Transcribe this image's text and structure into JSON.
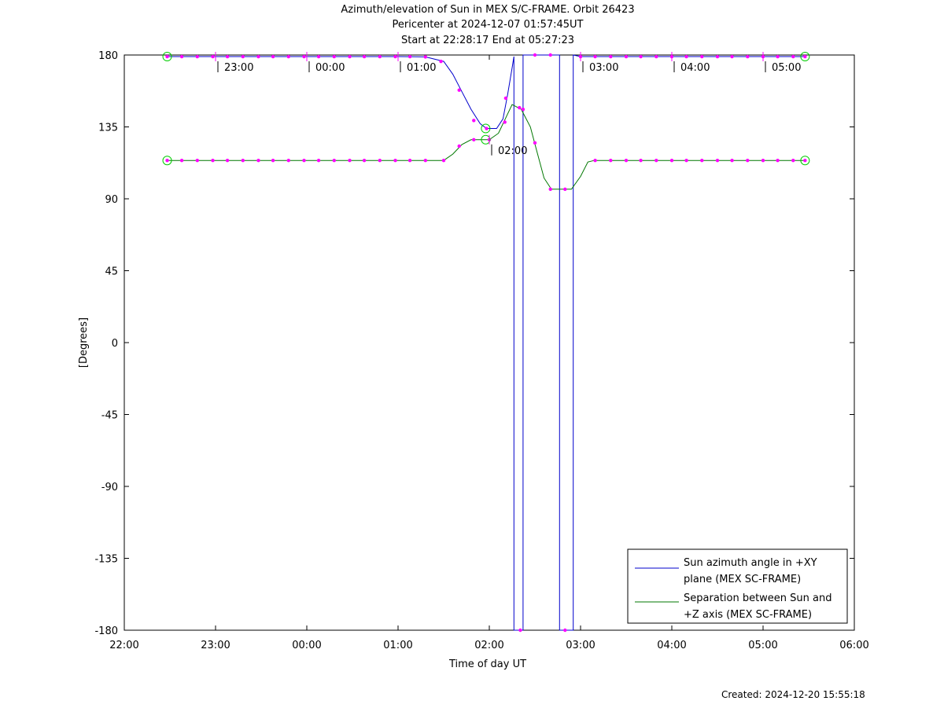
{
  "title_lines": [
    "Azimuth/elevation of Sun in MEX S/C-FRAME.  Orbit 26423",
    "Pericenter at 2024-12-07 01:57:45UT",
    "Start at 22:28:17 End at 05:27:23"
  ],
  "created": "Created: 2024-12-20 15:55:18",
  "chart_data": {
    "type": "line",
    "xlabel": "Time of day UT",
    "ylabel": "[Degrees]",
    "xlim_hours": [
      22,
      30
    ],
    "ylim": [
      -180,
      180
    ],
    "x_ticks": [
      {
        "h": 22,
        "label": "22:00"
      },
      {
        "h": 23,
        "label": "23:00"
      },
      {
        "h": 24,
        "label": "00:00"
      },
      {
        "h": 25,
        "label": "01:00"
      },
      {
        "h": 26,
        "label": "02:00"
      },
      {
        "h": 27,
        "label": "03:00"
      },
      {
        "h": 28,
        "label": "04:00"
      },
      {
        "h": 29,
        "label": "05:00"
      },
      {
        "h": 30,
        "label": "06:00"
      }
    ],
    "y_ticks": [
      {
        "v": 180,
        "label": "180"
      },
      {
        "v": 135,
        "label": "135"
      },
      {
        "v": 90,
        "label": "90"
      },
      {
        "v": 45,
        "label": "45"
      },
      {
        "v": 0,
        "label": "0"
      },
      {
        "v": -45,
        "label": "-45"
      },
      {
        "v": -90,
        "label": "-90"
      },
      {
        "v": -135,
        "label": "-135"
      },
      {
        "v": -180,
        "label": "-180"
      }
    ],
    "grid": false,
    "legend_position": "bottom-right",
    "series": [
      {
        "name": "Sun azimuth angle in +XY plane (MEX SC-FRAME)",
        "legend_lines": [
          "Sun azimuth angle in +XY",
          "plane (MEX SC-FRAME)"
        ],
        "color": "#0000cc",
        "points": [
          [
            22.47,
            179
          ],
          [
            23.0,
            179
          ],
          [
            24.0,
            179
          ],
          [
            25.0,
            179
          ],
          [
            25.3,
            178.8
          ],
          [
            25.5,
            176
          ],
          [
            25.6,
            168
          ],
          [
            25.7,
            157
          ],
          [
            25.8,
            146
          ],
          [
            25.9,
            137
          ],
          [
            25.97,
            134
          ],
          [
            26.08,
            134
          ],
          [
            26.15,
            140
          ],
          [
            26.2,
            155
          ],
          [
            26.25,
            172
          ],
          [
            26.27,
            179
          ],
          [
            26.27,
            90
          ],
          [
            26.27,
            -90
          ],
          [
            26.27,
            -180
          ],
          [
            26.37,
            -180
          ],
          [
            26.37,
            -90
          ],
          [
            26.37,
            90
          ],
          [
            26.37,
            180
          ],
          [
            26.77,
            180
          ],
          [
            26.77,
            90
          ],
          [
            26.77,
            -90
          ],
          [
            26.77,
            -180
          ],
          [
            26.92,
            -180
          ],
          [
            26.92,
            -90
          ],
          [
            26.92,
            90
          ],
          [
            26.92,
            180
          ],
          [
            27.0,
            179
          ],
          [
            28.0,
            179
          ],
          [
            29.0,
            179
          ],
          [
            29.46,
            179
          ]
        ]
      },
      {
        "name": "Separation between Sun and +Z axis (MEX SC-FRAME)",
        "legend_lines": [
          "Separation between Sun and",
          "+Z axis (MEX SC-FRAME)"
        ],
        "color": "#007700",
        "points": [
          [
            22.47,
            114
          ],
          [
            23.0,
            114
          ],
          [
            24.0,
            114
          ],
          [
            25.0,
            114
          ],
          [
            25.5,
            114
          ],
          [
            25.6,
            118
          ],
          [
            25.7,
            124
          ],
          [
            25.8,
            127
          ],
          [
            26.0,
            127
          ],
          [
            26.1,
            131
          ],
          [
            26.2,
            143
          ],
          [
            26.25,
            149
          ],
          [
            26.35,
            146
          ],
          [
            26.45,
            135
          ],
          [
            26.52,
            120
          ],
          [
            26.6,
            103
          ],
          [
            26.68,
            96
          ],
          [
            26.9,
            96
          ],
          [
            27.0,
            104
          ],
          [
            27.08,
            113
          ],
          [
            27.15,
            114
          ],
          [
            28.0,
            114
          ],
          [
            29.0,
            114
          ],
          [
            29.46,
            114
          ]
        ]
      }
    ],
    "markers_magenta": [
      {
        "x": 22.47,
        "y": 179
      },
      {
        "x": 22.63,
        "y": 179
      },
      {
        "x": 22.8,
        "y": 179
      },
      {
        "x": 22.97,
        "y": 179
      },
      {
        "x": 23.13,
        "y": 179
      },
      {
        "x": 23.3,
        "y": 179
      },
      {
        "x": 23.47,
        "y": 179
      },
      {
        "x": 23.63,
        "y": 179
      },
      {
        "x": 23.8,
        "y": 179
      },
      {
        "x": 23.97,
        "y": 179
      },
      {
        "x": 24.13,
        "y": 179
      },
      {
        "x": 24.3,
        "y": 179
      },
      {
        "x": 24.47,
        "y": 179
      },
      {
        "x": 24.63,
        "y": 179
      },
      {
        "x": 24.8,
        "y": 179
      },
      {
        "x": 24.97,
        "y": 179
      },
      {
        "x": 25.13,
        "y": 179
      },
      {
        "x": 25.3,
        "y": 178.8
      },
      {
        "x": 25.47,
        "y": 176
      },
      {
        "x": 25.67,
        "y": 158
      },
      {
        "x": 25.83,
        "y": 139
      },
      {
        "x": 25.97,
        "y": 134
      },
      {
        "x": 26.18,
        "y": 153
      },
      {
        "x": 26.34,
        "y": -180
      },
      {
        "x": 26.37,
        "y": 146
      },
      {
        "x": 26.5,
        "y": 180
      },
      {
        "x": 26.67,
        "y": 180
      },
      {
        "x": 26.83,
        "y": -180
      },
      {
        "x": 27.0,
        "y": 179
      },
      {
        "x": 27.16,
        "y": 179
      },
      {
        "x": 27.33,
        "y": 179
      },
      {
        "x": 27.5,
        "y": 179
      },
      {
        "x": 27.66,
        "y": 179
      },
      {
        "x": 27.83,
        "y": 179
      },
      {
        "x": 28.0,
        "y": 179
      },
      {
        "x": 28.16,
        "y": 179
      },
      {
        "x": 28.33,
        "y": 179
      },
      {
        "x": 28.5,
        "y": 179
      },
      {
        "x": 28.66,
        "y": 179
      },
      {
        "x": 28.83,
        "y": 179
      },
      {
        "x": 29.0,
        "y": 179
      },
      {
        "x": 29.16,
        "y": 179
      },
      {
        "x": 29.33,
        "y": 179
      },
      {
        "x": 29.46,
        "y": 179
      },
      {
        "x": 22.47,
        "y": 114
      },
      {
        "x": 22.63,
        "y": 114
      },
      {
        "x": 22.8,
        "y": 114
      },
      {
        "x": 22.97,
        "y": 114
      },
      {
        "x": 23.13,
        "y": 114
      },
      {
        "x": 23.3,
        "y": 114
      },
      {
        "x": 23.47,
        "y": 114
      },
      {
        "x": 23.63,
        "y": 114
      },
      {
        "x": 23.8,
        "y": 114
      },
      {
        "x": 23.97,
        "y": 114
      },
      {
        "x": 24.13,
        "y": 114
      },
      {
        "x": 24.3,
        "y": 114
      },
      {
        "x": 24.47,
        "y": 114
      },
      {
        "x": 24.63,
        "y": 114
      },
      {
        "x": 24.8,
        "y": 114
      },
      {
        "x": 24.97,
        "y": 114
      },
      {
        "x": 25.13,
        "y": 114
      },
      {
        "x": 25.3,
        "y": 114
      },
      {
        "x": 25.5,
        "y": 114
      },
      {
        "x": 25.67,
        "y": 123
      },
      {
        "x": 25.83,
        "y": 127
      },
      {
        "x": 26.0,
        "y": 127
      },
      {
        "x": 26.17,
        "y": 138
      },
      {
        "x": 26.33,
        "y": 147
      },
      {
        "x": 26.5,
        "y": 125
      },
      {
        "x": 26.67,
        "y": 96
      },
      {
        "x": 26.83,
        "y": 96
      },
      {
        "x": 27.16,
        "y": 114
      },
      {
        "x": 27.33,
        "y": 114
      },
      {
        "x": 27.5,
        "y": 114
      },
      {
        "x": 27.66,
        "y": 114
      },
      {
        "x": 27.83,
        "y": 114
      },
      {
        "x": 28.0,
        "y": 114
      },
      {
        "x": 28.16,
        "y": 114
      },
      {
        "x": 28.33,
        "y": 114
      },
      {
        "x": 28.5,
        "y": 114
      },
      {
        "x": 28.66,
        "y": 114
      },
      {
        "x": 28.83,
        "y": 114
      },
      {
        "x": 29.0,
        "y": 114
      },
      {
        "x": 29.16,
        "y": 114
      },
      {
        "x": 29.33,
        "y": 114
      },
      {
        "x": 29.46,
        "y": 114
      }
    ],
    "markers_green_circle": [
      {
        "x": 22.47,
        "y": 179
      },
      {
        "x": 29.46,
        "y": 179
      },
      {
        "x": 22.47,
        "y": 114
      },
      {
        "x": 29.46,
        "y": 114
      },
      {
        "x": 25.96,
        "y": 134
      },
      {
        "x": 25.96,
        "y": 127
      }
    ],
    "hour_annotations": [
      {
        "x": 23.0,
        "y": 179,
        "label": "23:00"
      },
      {
        "x": 24.0,
        "y": 179,
        "label": "00:00"
      },
      {
        "x": 25.0,
        "y": 179,
        "label": "01:00"
      },
      {
        "x": 26.0,
        "y": 127,
        "label": "02:00"
      },
      {
        "x": 27.0,
        "y": 179,
        "label": "03:00"
      },
      {
        "x": 28.0,
        "y": 179,
        "label": "04:00"
      },
      {
        "x": 29.0,
        "y": 179,
        "label": "05:00"
      }
    ]
  }
}
